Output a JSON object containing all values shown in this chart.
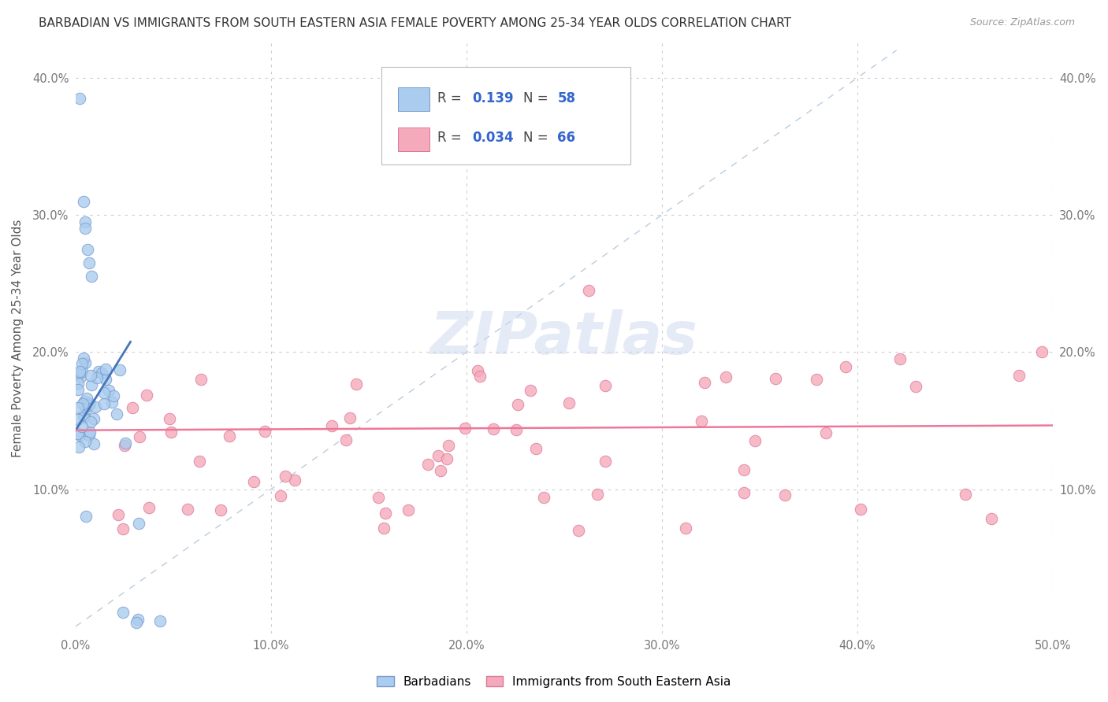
{
  "title": "BARBADIAN VS IMMIGRANTS FROM SOUTH EASTERN ASIA FEMALE POVERTY AMONG 25-34 YEAR OLDS CORRELATION CHART",
  "source": "Source: ZipAtlas.com",
  "ylabel": "Female Poverty Among 25-34 Year Olds",
  "xlim": [
    0.0,
    0.5
  ],
  "ylim": [
    -0.005,
    0.425
  ],
  "xticks": [
    0.0,
    0.1,
    0.2,
    0.3,
    0.4,
    0.5
  ],
  "xticklabels": [
    "0.0%",
    "10.0%",
    "20.0%",
    "30.0%",
    "40.0%",
    "50.0%"
  ],
  "yticks": [
    0.0,
    0.1,
    0.2,
    0.3,
    0.4
  ],
  "yticklabels": [
    "",
    "10.0%",
    "20.0%",
    "30.0%",
    "40.0%"
  ],
  "yticklabels_right": [
    "",
    "10.0%",
    "20.0%",
    "30.0%",
    "40.0%"
  ],
  "background_color": "#ffffff",
  "legend_R1": "0.139",
  "legend_N1": "58",
  "legend_R2": "0.034",
  "legend_N2": "66",
  "series1_color": "#aaccee",
  "series1_edge": "#7799cc",
  "series2_color": "#f5aabb",
  "series2_edge": "#dd7799",
  "line1_color": "#4477bb",
  "line2_color": "#ee7799",
  "diagonal_color": "#bbccdd",
  "grid_color": "#cccccc",
  "tick_color": "#777777",
  "title_color": "#333333",
  "source_color": "#999999",
  "ylabel_color": "#555555"
}
